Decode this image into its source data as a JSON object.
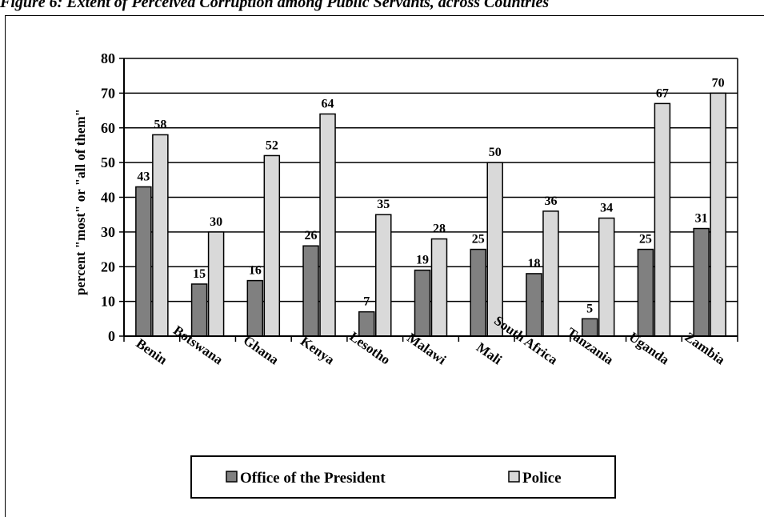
{
  "chart_data": {
    "type": "bar",
    "title": "Figure 6: Extent of Perceived Corruption among Public Servants, across Countries",
    "xlabel": "",
    "ylabel": "percent \"most\" or \"all of them\"",
    "ylim": [
      0,
      80
    ],
    "yticks": [
      0,
      10,
      20,
      30,
      40,
      50,
      60,
      70,
      80
    ],
    "categories": [
      "Benin",
      "Botswana",
      "Ghana",
      "Kenya",
      "Lesotho",
      "Malawi",
      "Mali",
      "South Africa",
      "Tanzania",
      "Uganda",
      "Zambia"
    ],
    "series": [
      {
        "name": "Office of the President",
        "color": "#808080",
        "values": [
          43,
          15,
          16,
          26,
          7,
          19,
          25,
          18,
          5,
          25,
          31
        ]
      },
      {
        "name": "Police",
        "color": "#d9d9d9",
        "values": [
          58,
          30,
          52,
          64,
          35,
          28,
          50,
          36,
          34,
          67,
          70
        ]
      }
    ],
    "grid": true,
    "data_labels": true,
    "legend_position": "bottom"
  }
}
